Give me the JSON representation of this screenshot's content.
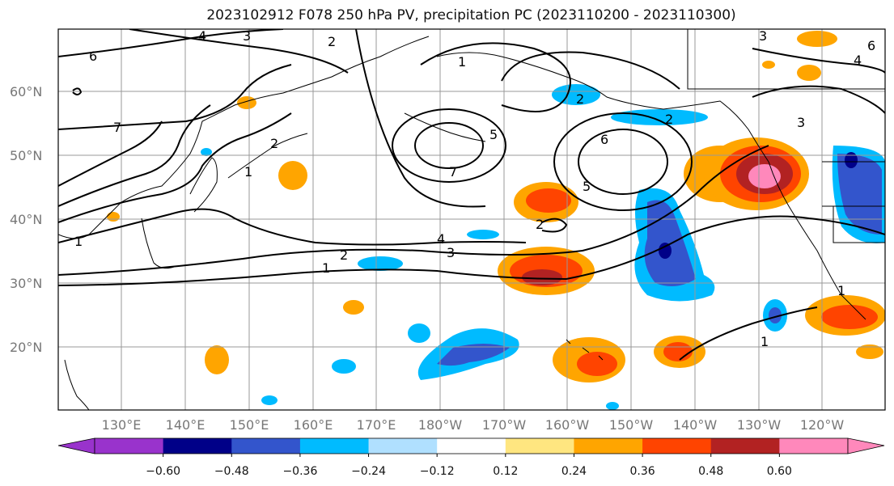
{
  "title": "2023102912 F078 250 hPa PV, precipitation PC (2023110200 - 2023110300)",
  "lat_labels": [
    "60°N",
    "50°N",
    "40°N",
    "30°N",
    "20°N"
  ],
  "lon_labels": [
    "130°E",
    "140°E",
    "150°E",
    "160°E",
    "170°E",
    "180°W",
    "170°W",
    "160°W",
    "150°W",
    "140°W",
    "130°W",
    "120°W"
  ],
  "colorbar": {
    "colors": [
      "#9933cc",
      "#000088",
      "#3355cc",
      "#00bbff",
      "#b0e0ff",
      "#ffffff",
      "#ffe680",
      "#ffa500",
      "#ff4400",
      "#b22222",
      "#ff88bb"
    ],
    "tick_labels": [
      "−0.60",
      "−0.48",
      "−0.36",
      "−0.24",
      "−0.12",
      "0.12",
      "0.24",
      "0.36",
      "0.48",
      "0.60"
    ]
  },
  "contour_labels": [
    "4",
    "3",
    "2",
    "6",
    "1",
    "7",
    "2",
    "1",
    "2",
    "5",
    "7",
    "6",
    "5",
    "2",
    "4",
    "3",
    "2",
    "1",
    "1",
    "3",
    "4",
    "6",
    "3",
    "2",
    "1",
    "1"
  ]
}
